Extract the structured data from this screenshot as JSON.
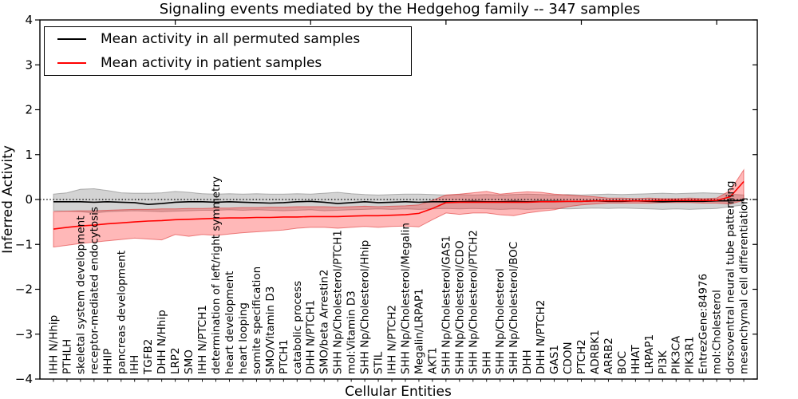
{
  "chart_data": {
    "type": "line",
    "title": "Signaling events mediated by the Hedgehog family -- 347 samples",
    "xlabel": "Cellular Entities",
    "ylabel": "Inferred Activity",
    "ylim": [
      -4,
      4
    ],
    "yticks": [
      4,
      3,
      2,
      1,
      0,
      -1,
      -2,
      -3,
      -4
    ],
    "x_major_ticks": [
      10,
      20,
      30,
      40,
      50
    ],
    "grid": false,
    "legend_position": "upper left",
    "zero_line_style": "dotted",
    "categories": [
      "IHH N/Hhip",
      "PTHLH",
      "skeletal system development",
      "receptor-mediated endocytosis",
      "HHIP",
      "pancreas development",
      "IHH",
      "TGFB2",
      "DHH N/Hhip",
      "LRP2",
      "SMO",
      "IHH N/PTCH1",
      "determination of left/right symmetry",
      "heart development",
      "heart looping",
      "somite specification",
      "SMO/Vitamin D3",
      "PTCH1",
      "catabolic process",
      "DHH N/PTCH1",
      "SMO/beta Arrestin2",
      "SHH Np/Cholesterol/PTCH1",
      "mol:Vitamin D3",
      "SHH Np/Cholesterol/Hhip",
      "STIL",
      "IHH N/PTCH2",
      "SHH Np/Cholesterol/Megalin",
      "Megalin/LRPAP1",
      "AKT1",
      "SHH Np/Cholesterol/GAS1",
      "SHH Np/Cholesterol/CDO",
      "SHH Np/Cholesterol/PTCH2",
      "SHH",
      "SHH Np/Cholesterol",
      "SHH Np/Cholesterol/BOC",
      "DHH",
      "DHH N/PTCH2",
      "GAS1",
      "CDON",
      "PTCH2",
      "ADRBK1",
      "ARRB2",
      "BOC",
      "HHAT",
      "LRPAP1",
      "PI3K",
      "PIK3CA",
      "PIK3R1",
      "EntrezGene:84976",
      "mol:Cholesterol",
      "dorsoventral neural tube patterning",
      "mesenchymal cell differentiation"
    ],
    "series": [
      {
        "name": "Mean activity in all permuted samples",
        "color": "#000000",
        "band_fill": "rgba(130,130,130,0.35)",
        "band_edge": "rgba(100,100,100,0.45)",
        "values": [
          -0.05,
          -0.05,
          -0.05,
          -0.06,
          -0.05,
          -0.06,
          -0.07,
          -0.11,
          -0.09,
          -0.06,
          -0.05,
          -0.05,
          -0.06,
          -0.05,
          -0.06,
          -0.07,
          -0.08,
          -0.07,
          -0.05,
          -0.04,
          -0.06,
          -0.09,
          -0.07,
          -0.05,
          -0.07,
          -0.06,
          -0.05,
          -0.06,
          -0.05,
          -0.05,
          -0.05,
          -0.04,
          -0.05,
          -0.05,
          -0.04,
          -0.05,
          -0.04,
          -0.04,
          -0.04,
          -0.04,
          -0.03,
          -0.04,
          -0.04,
          -0.03,
          -0.04,
          -0.05,
          -0.04,
          -0.04,
          -0.04,
          -0.03,
          -0.03,
          -0.02
        ],
        "band_upper": [
          0.12,
          0.15,
          0.23,
          0.24,
          0.2,
          0.15,
          0.14,
          0.14,
          0.15,
          0.18,
          0.16,
          0.13,
          0.12,
          0.13,
          0.12,
          0.13,
          0.12,
          0.12,
          0.13,
          0.12,
          0.14,
          0.16,
          0.13,
          0.11,
          0.1,
          0.11,
          0.12,
          0.12,
          0.11,
          0.1,
          0.11,
          0.1,
          0.11,
          0.1,
          0.11,
          0.12,
          0.11,
          0.1,
          0.11,
          0.1,
          0.11,
          0.12,
          0.11,
          0.12,
          0.13,
          0.14,
          0.13,
          0.14,
          0.15,
          0.14,
          0.12,
          0.1
        ],
        "band_lower": [
          -0.25,
          -0.26,
          -0.27,
          -0.3,
          -0.27,
          -0.26,
          -0.25,
          -0.26,
          -0.27,
          -0.26,
          -0.25,
          -0.24,
          -0.24,
          -0.23,
          -0.24,
          -0.23,
          -0.24,
          -0.25,
          -0.24,
          -0.23,
          -0.25,
          -0.24,
          -0.23,
          -0.22,
          -0.21,
          -0.22,
          -0.21,
          -0.22,
          -0.21,
          -0.2,
          -0.21,
          -0.2,
          -0.21,
          -0.22,
          -0.21,
          -0.22,
          -0.21,
          -0.2,
          -0.21,
          -0.2,
          -0.19,
          -0.2,
          -0.19,
          -0.2,
          -0.21,
          -0.22,
          -0.21,
          -0.22,
          -0.21,
          -0.2,
          -0.16,
          -0.12
        ]
      },
      {
        "name": "Mean activity in patient samples",
        "color": "#ff0000",
        "band_fill": "rgba(255,35,35,0.32)",
        "band_edge": "rgba(220,40,40,0.55)",
        "values": [
          -0.66,
          -0.62,
          -0.59,
          -0.57,
          -0.54,
          -0.52,
          -0.5,
          -0.48,
          -0.47,
          -0.45,
          -0.44,
          -0.43,
          -0.42,
          -0.41,
          -0.41,
          -0.4,
          -0.4,
          -0.39,
          -0.39,
          -0.38,
          -0.38,
          -0.38,
          -0.37,
          -0.36,
          -0.36,
          -0.35,
          -0.34,
          -0.31,
          -0.2,
          -0.07,
          -0.06,
          -0.06,
          -0.06,
          -0.06,
          -0.06,
          -0.06,
          -0.05,
          -0.05,
          -0.04,
          -0.04,
          -0.03,
          -0.03,
          -0.03,
          -0.03,
          -0.03,
          -0.02,
          -0.02,
          -0.02,
          -0.02,
          -0.02,
          0.06,
          0.4
        ],
        "band_upper": [
          -0.27,
          -0.26,
          -0.25,
          -0.25,
          -0.24,
          -0.23,
          -0.22,
          -0.22,
          -0.21,
          -0.21,
          -0.2,
          -0.2,
          -0.19,
          -0.19,
          -0.18,
          -0.18,
          -0.17,
          -0.17,
          -0.16,
          -0.16,
          -0.16,
          -0.17,
          -0.16,
          -0.15,
          -0.16,
          -0.15,
          -0.14,
          -0.12,
          -0.02,
          0.1,
          0.12,
          0.15,
          0.18,
          0.12,
          0.15,
          0.17,
          0.16,
          0.12,
          0.1,
          0.08,
          0.06,
          0.03,
          0.03,
          0.02,
          0.03,
          0.02,
          0.02,
          0.03,
          0.02,
          0.03,
          0.2,
          0.66
        ],
        "band_lower": [
          -1.06,
          -1.02,
          -0.98,
          -0.95,
          -0.92,
          -0.89,
          -0.86,
          -0.88,
          -0.9,
          -0.78,
          -0.82,
          -0.78,
          -0.8,
          -0.77,
          -0.74,
          -0.72,
          -0.7,
          -0.68,
          -0.64,
          -0.62,
          -0.62,
          -0.64,
          -0.62,
          -0.6,
          -0.62,
          -0.6,
          -0.59,
          -0.61,
          -0.45,
          -0.3,
          -0.33,
          -0.3,
          -0.3,
          -0.34,
          -0.36,
          -0.3,
          -0.26,
          -0.23,
          -0.16,
          -0.12,
          -0.1,
          -0.08,
          -0.08,
          -0.08,
          -0.08,
          -0.07,
          -0.07,
          -0.07,
          -0.08,
          -0.08,
          -0.1,
          -0.02
        ]
      }
    ]
  }
}
